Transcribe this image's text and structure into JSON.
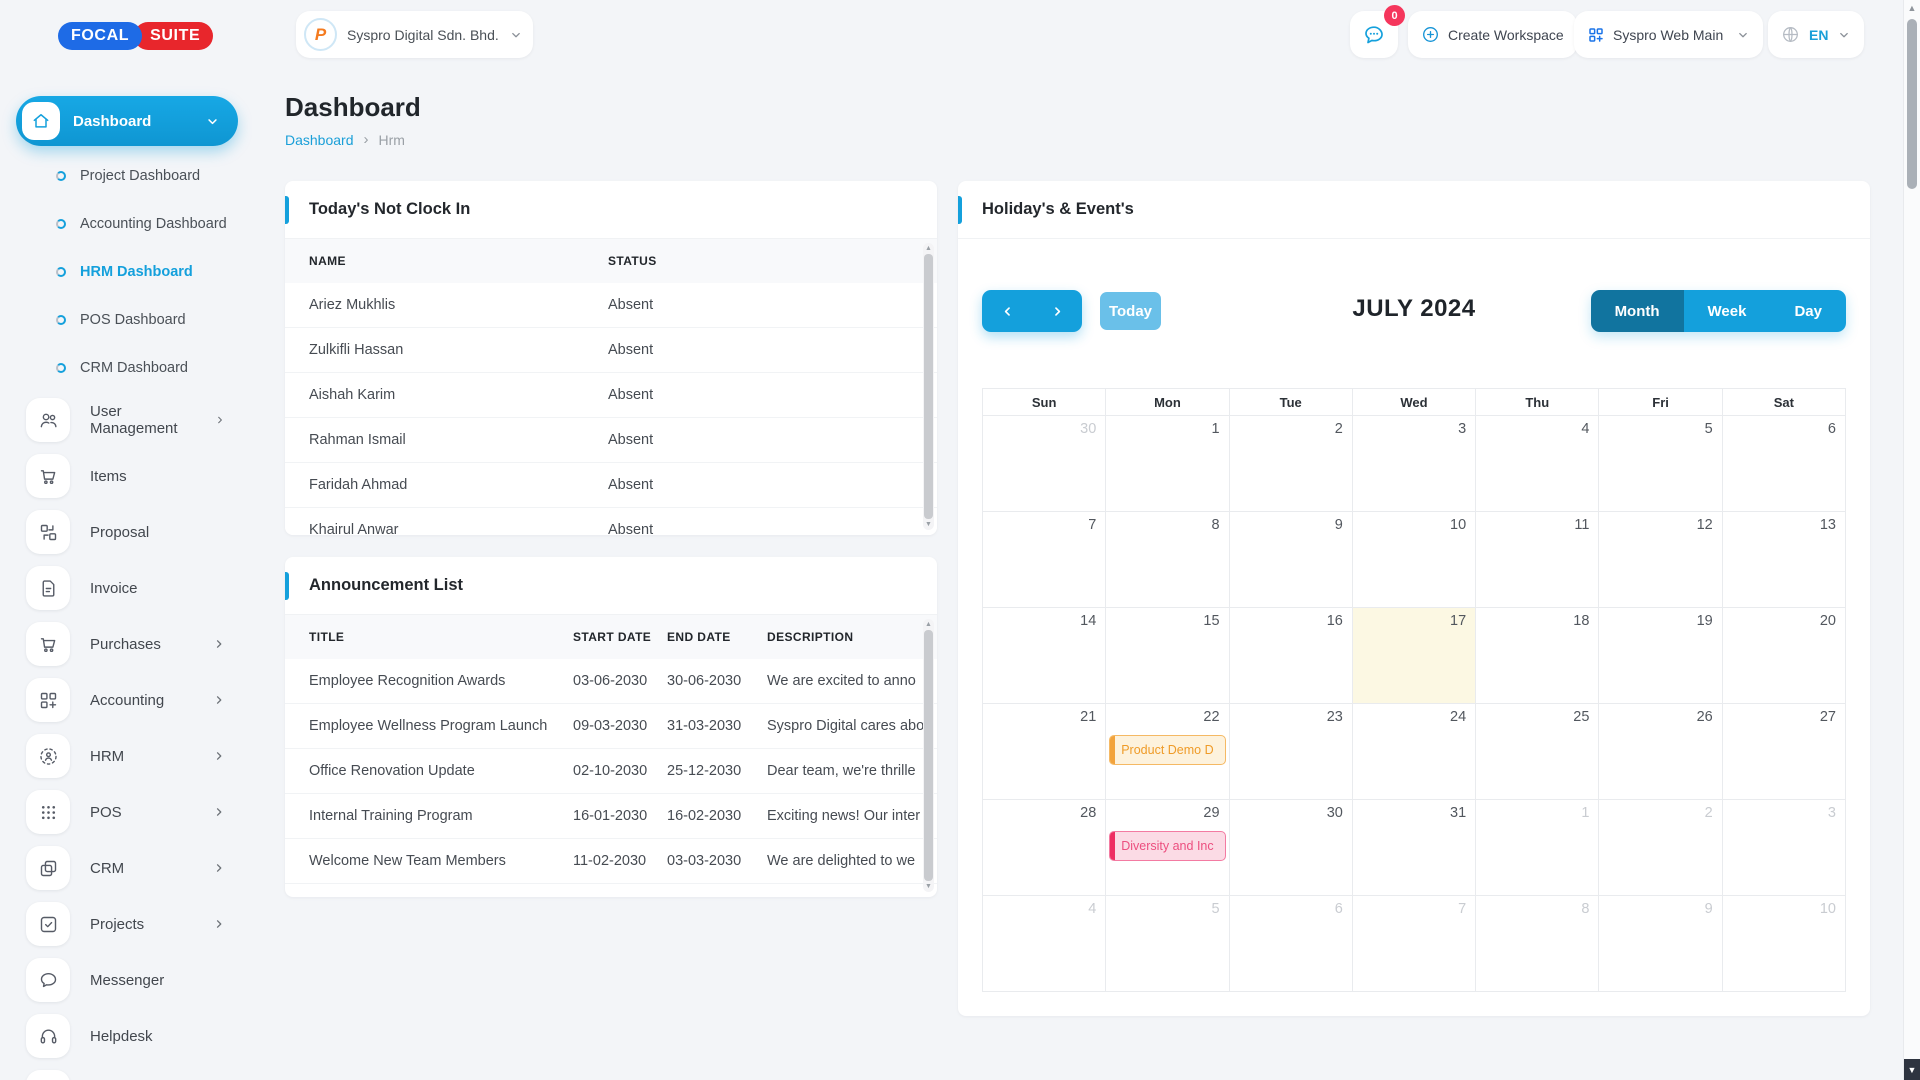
{
  "brand": {
    "part1": "FOCAL",
    "part2": "SUITE"
  },
  "topbar": {
    "workspace_name": "Syspro Digital Sdn. Bhd.",
    "workspace_logo_letter": "P",
    "chat_badge": "0",
    "create_workspace_label": "Create Workspace",
    "app_selector_label": "Syspro Web Main",
    "language_label": "EN"
  },
  "icons": {
    "scroll_up": "▲",
    "scroll_down": "▼",
    "breadcrumb_separator": "›"
  },
  "sidebar": {
    "dashboard_label": "Dashboard",
    "dashboard_children": [
      {
        "label": "Project Dashboard",
        "active": false
      },
      {
        "label": "Accounting Dashboard",
        "active": false
      },
      {
        "label": "HRM Dashboard",
        "active": true
      },
      {
        "label": "POS Dashboard",
        "active": false
      },
      {
        "label": "CRM Dashboard",
        "active": false
      }
    ],
    "items": [
      {
        "label": "User Management",
        "icon": "users-icon",
        "expandable": true
      },
      {
        "label": "Items",
        "icon": "cart-icon",
        "expandable": false
      },
      {
        "label": "Proposal",
        "icon": "proposal-icon",
        "expandable": false
      },
      {
        "label": "Invoice",
        "icon": "invoice-icon",
        "expandable": false
      },
      {
        "label": "Purchases",
        "icon": "cart-icon",
        "expandable": true
      },
      {
        "label": "Accounting",
        "icon": "grid-plus-icon",
        "expandable": true
      },
      {
        "label": "HRM",
        "icon": "user-scan-icon",
        "expandable": true
      },
      {
        "label": "POS",
        "icon": "dots-grid-icon",
        "expandable": true
      },
      {
        "label": "CRM",
        "icon": "overlap-squares-icon",
        "expandable": true
      },
      {
        "label": "Projects",
        "icon": "check-square-icon",
        "expandable": true
      },
      {
        "label": "Messenger",
        "icon": "chat-bubble-icon",
        "expandable": false
      },
      {
        "label": "Helpdesk",
        "icon": "headset-icon",
        "expandable": false
      }
    ]
  },
  "page": {
    "title": "Dashboard",
    "breadcrumb_root": "Dashboard",
    "breadcrumb_current": "Hrm"
  },
  "not_clock_in": {
    "title": "Today's Not Clock In",
    "columns": [
      "NAME",
      "STATUS"
    ],
    "rows": [
      {
        "name": "Ariez Mukhlis",
        "status": "Absent"
      },
      {
        "name": "Zulkifli Hassan",
        "status": "Absent"
      },
      {
        "name": "Aishah Karim",
        "status": "Absent"
      },
      {
        "name": "Rahman Ismail",
        "status": "Absent"
      },
      {
        "name": "Faridah Ahmad",
        "status": "Absent"
      },
      {
        "name": "Khairul Anwar",
        "status": "Absent"
      }
    ]
  },
  "announcements": {
    "title": "Announcement List",
    "columns": [
      "TITLE",
      "START DATE",
      "END DATE",
      "DESCRIPTION"
    ],
    "rows": [
      {
        "title": "Employee Recognition Awards",
        "start": "03-06-2030",
        "end": "30-06-2030",
        "description": "We are excited to anno"
      },
      {
        "title": "Employee Wellness Program Launch",
        "start": "09-03-2030",
        "end": "31-03-2030",
        "description": "Syspro Digital cares abo"
      },
      {
        "title": "Office Renovation Update",
        "start": "02-10-2030",
        "end": "25-12-2030",
        "description": "Dear team, we're thrille"
      },
      {
        "title": "Internal Training Program",
        "start": "16-01-2030",
        "end": "16-02-2030",
        "description": "Exciting news! Our inter"
      },
      {
        "title": "Welcome New Team Members",
        "start": "11-02-2030",
        "end": "03-03-2030",
        "description": "We are delighted to we"
      }
    ]
  },
  "calendar": {
    "title": "Holiday's & Event's",
    "today_label": "Today",
    "month_label": "JULY 2024",
    "views": [
      "Month",
      "Week",
      "Day"
    ],
    "active_view": "Month",
    "day_headers": [
      "Sun",
      "Mon",
      "Tue",
      "Wed",
      "Thu",
      "Fri",
      "Sat"
    ],
    "weeks": [
      [
        {
          "d": 30,
          "muted": true
        },
        {
          "d": 1
        },
        {
          "d": 2
        },
        {
          "d": 3
        },
        {
          "d": 4
        },
        {
          "d": 5
        },
        {
          "d": 6
        }
      ],
      [
        {
          "d": 7
        },
        {
          "d": 8
        },
        {
          "d": 9
        },
        {
          "d": 10
        },
        {
          "d": 11
        },
        {
          "d": 12
        },
        {
          "d": 13
        }
      ],
      [
        {
          "d": 14
        },
        {
          "d": 15
        },
        {
          "d": 16
        },
        {
          "d": 17,
          "today": true
        },
        {
          "d": 18
        },
        {
          "d": 19
        },
        {
          "d": 20
        }
      ],
      [
        {
          "d": 21
        },
        {
          "d": 22,
          "event": {
            "label": "Product Demo D",
            "type": "orange"
          }
        },
        {
          "d": 23
        },
        {
          "d": 24
        },
        {
          "d": 25
        },
        {
          "d": 26
        },
        {
          "d": 27
        }
      ],
      [
        {
          "d": 28
        },
        {
          "d": 29,
          "event": {
            "label": "Diversity and Inc",
            "type": "pink"
          }
        },
        {
          "d": 30
        },
        {
          "d": 31
        },
        {
          "d": 1,
          "muted": true
        },
        {
          "d": 2,
          "muted": true
        },
        {
          "d": 3,
          "muted": true
        }
      ],
      [
        {
          "d": 4,
          "muted": true
        },
        {
          "d": 5,
          "muted": true
        },
        {
          "d": 6,
          "muted": true
        },
        {
          "d": 7,
          "muted": true
        },
        {
          "d": 8,
          "muted": true
        },
        {
          "d": 9,
          "muted": true
        },
        {
          "d": 10,
          "muted": true
        }
      ]
    ]
  },
  "colors": {
    "primary": "#14a0dc",
    "primary_dark": "#11749f",
    "today_button": "#6ac0e9",
    "brand_blue": "#1e6be6",
    "brand_red": "#e8262c",
    "badge_red": "#f5365c",
    "today_cell": "#fcf8e3",
    "event_orange": "#ef9b28",
    "event_pink": "#ec4f7f"
  }
}
